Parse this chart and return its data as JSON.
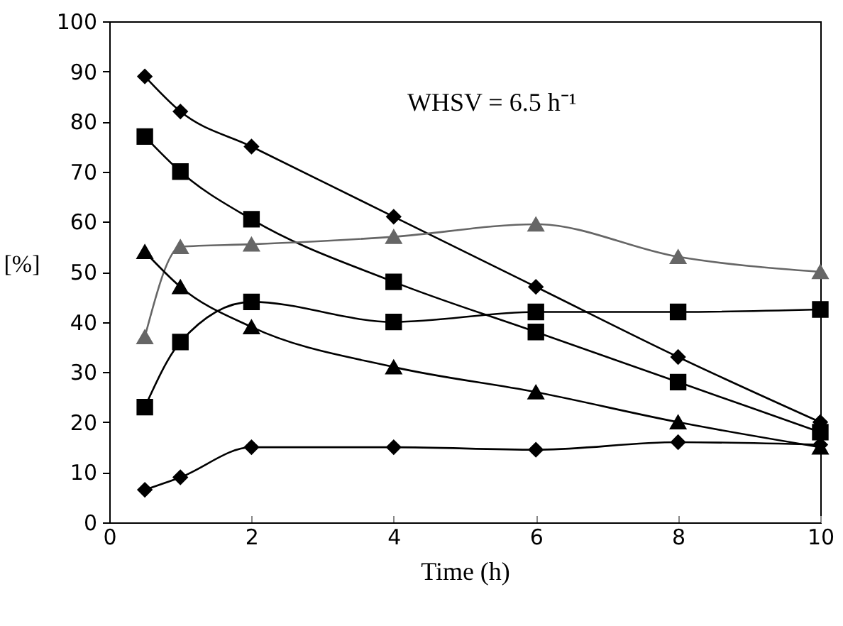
{
  "chart_data": {
    "type": "line",
    "xlabel": "Time (h)",
    "ylabel": "[%]",
    "annotations": [
      "WHSV = 6.5 h⁻¹"
    ],
    "x": [
      0.5,
      1,
      2,
      4,
      6,
      8,
      10
    ],
    "series": [
      {
        "color": "#000000",
        "marker": "diamond",
        "values": [
          89,
          82,
          75,
          61,
          47,
          33,
          20
        ]
      },
      {
        "color": "#000000",
        "marker": "square",
        "values": [
          77,
          70,
          60.5,
          48,
          38,
          28,
          18
        ]
      },
      {
        "color": "#666666",
        "marker": "triangle",
        "values": [
          37,
          55,
          55.5,
          57,
          59.5,
          53,
          50
        ]
      },
      {
        "color": "#000000",
        "marker": "square",
        "values": [
          23,
          36,
          44,
          40,
          42,
          42,
          42.5
        ]
      },
      {
        "color": "#000000",
        "marker": "triangle",
        "values": [
          54,
          47,
          39,
          31,
          26,
          20,
          15
        ]
      },
      {
        "color": "#000000",
        "marker": "diamond",
        "values": [
          6.5,
          9,
          15,
          15,
          14.5,
          16,
          15.5
        ]
      }
    ],
    "xlim": [
      0,
      10
    ],
    "xticks": [
      0,
      2,
      4,
      6,
      8,
      10
    ],
    "ylim": [
      0,
      100
    ],
    "yticks": [
      0,
      10,
      20,
      30,
      40,
      50,
      60,
      70,
      80,
      90,
      100
    ],
    "grid": false,
    "line_style": "solid"
  }
}
